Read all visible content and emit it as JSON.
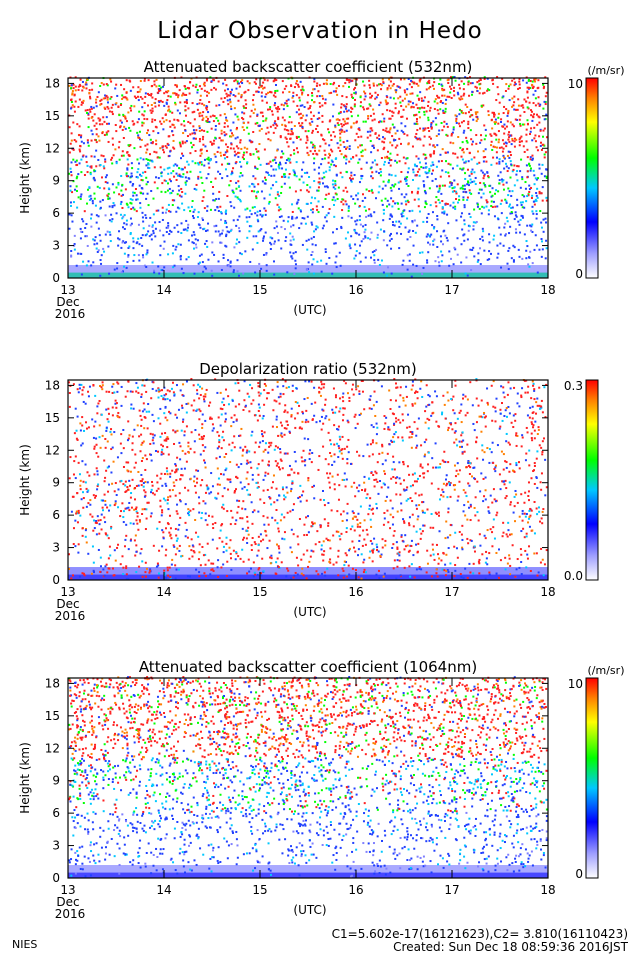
{
  "title": "Lidar Observation in Hedo",
  "chart_data": [
    {
      "type": "heatmap",
      "title": "Attenuated backscatter coefficient (532nm)",
      "ylabel": "Height (km)",
      "xlabel": "(UTC)",
      "ylim": [
        0,
        18.5
      ],
      "yticks": [
        "0",
        "3",
        "6",
        "9",
        "12",
        "15",
        "18"
      ],
      "xlim": [
        13,
        18
      ],
      "xticks": [
        "13",
        "14",
        "15",
        "16",
        "17",
        "18"
      ],
      "x_date_label": [
        "Dec",
        "2016"
      ],
      "colorbar": {
        "unit": "(/m/sr)",
        "max_label": "10",
        "min_label": "0"
      },
      "grid": false
    },
    {
      "type": "heatmap",
      "title": "Depolarization ratio (532nm)",
      "ylabel": "Height (km)",
      "xlabel": "(UTC)",
      "ylim": [
        0,
        18.5
      ],
      "yticks": [
        "0",
        "3",
        "6",
        "9",
        "12",
        "15",
        "18"
      ],
      "xlim": [
        13,
        18
      ],
      "xticks": [
        "13",
        "14",
        "15",
        "16",
        "17",
        "18"
      ],
      "x_date_label": [
        "Dec",
        "2016"
      ],
      "colorbar": {
        "unit": "",
        "max_label": "0.3",
        "min_label": "0.0"
      },
      "grid": false
    },
    {
      "type": "heatmap",
      "title": "Attenuated backscatter coefficient (1064nm)",
      "ylabel": "Height (km)",
      "xlabel": "(UTC)",
      "ylim": [
        0,
        18.5
      ],
      "yticks": [
        "0",
        "3",
        "6",
        "9",
        "12",
        "15",
        "18"
      ],
      "xlim": [
        13,
        18
      ],
      "xticks": [
        "13",
        "14",
        "15",
        "16",
        "17",
        "18"
      ],
      "x_date_label": [
        "Dec",
        "2016"
      ],
      "colorbar": {
        "unit": "(/m/sr)",
        "max_label": "10",
        "min_label": "0"
      },
      "grid": false
    }
  ],
  "footer": {
    "org": "NIES",
    "constants": "C1=5.602e-17(16121623),C2= 3.810(16110423)",
    "created": "Created: Sun Dec 18 08:59:36 2016JST"
  },
  "colormap": [
    "#ffffff",
    "#0000ff",
    "#00ffff",
    "#00ff00",
    "#ffff00",
    "#ff0000"
  ]
}
